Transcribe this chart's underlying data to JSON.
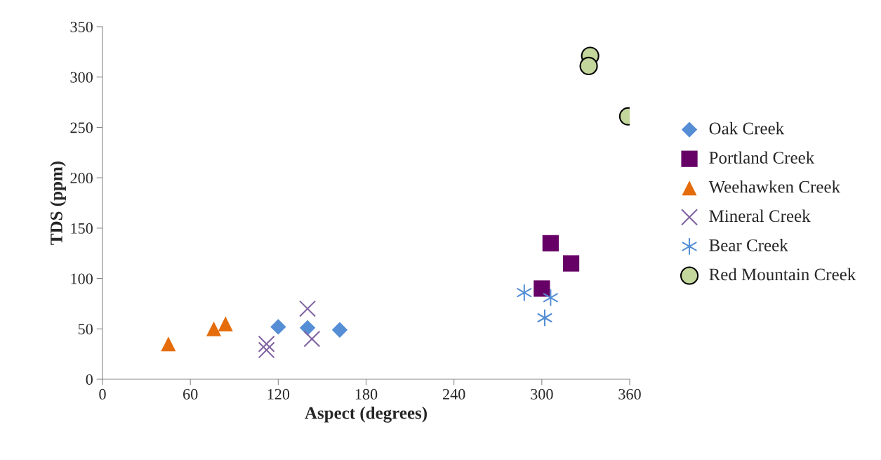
{
  "chart_data": {
    "type": "scatter",
    "xlabel": "Aspect (degrees)",
    "ylabel": "TDS (ppm)",
    "xlim": [
      0,
      360
    ],
    "ylim": [
      0,
      350
    ],
    "xticks": [
      0,
      60,
      120,
      180,
      240,
      300,
      360
    ],
    "yticks": [
      0,
      50,
      100,
      150,
      200,
      250,
      300,
      350
    ],
    "grid": false,
    "legend": "right",
    "series": [
      {
        "name": "Oak Creek",
        "color": "#558ed5",
        "marker": "diamond",
        "x": [
          120,
          140,
          162
        ],
        "values": [
          52,
          51,
          49
        ]
      },
      {
        "name": "Portland Creek",
        "color": "#660066",
        "marker": "square",
        "x": [
          306,
          320,
          300
        ],
        "values": [
          135,
          115,
          90
        ]
      },
      {
        "name": "Weehawken Creek",
        "color": "#e46c0a",
        "marker": "triangle",
        "x": [
          45,
          76,
          84
        ],
        "values": [
          35,
          50,
          55
        ]
      },
      {
        "name": "Mineral Creek",
        "color": "#8064a2",
        "marker": "cross",
        "x": [
          112,
          112,
          140,
          143
        ],
        "values": [
          35,
          29,
          70,
          40
        ]
      },
      {
        "name": "Bear Creek",
        "color": "#558ed5",
        "marker": "cross",
        "x": [
          288,
          306,
          302
        ],
        "values": [
          86,
          81,
          61
        ]
      },
      {
        "name": "Red Mountain Creek",
        "color": "#c3d69b",
        "marker": "circle",
        "x": [
          333,
          332,
          359
        ],
        "values": [
          321,
          311,
          261
        ]
      }
    ]
  }
}
